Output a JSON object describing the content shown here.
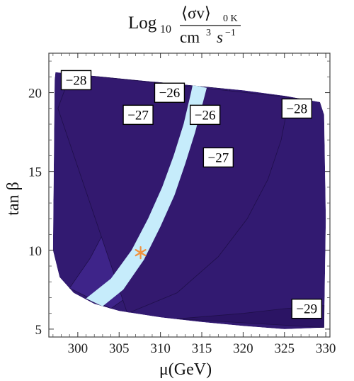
{
  "chart_data": {
    "type": "contour",
    "title": {
      "prefix": "Log",
      "base": "10",
      "numerator": "⟨σv⟩",
      "numerator_sub": "0 K",
      "denominator_a": "cm",
      "denominator_a_sup": "3",
      "denominator_b": "s",
      "denominator_b_sup": "−1"
    },
    "xlabel": "μ(GeV)",
    "ylabel": "tan β",
    "xlim": [
      296.5,
      330.5
    ],
    "ylim": [
      4.5,
      22.5
    ],
    "x_ticks": [
      300,
      305,
      310,
      315,
      320,
      325,
      330
    ],
    "x_tick_labels": [
      "300",
      "305",
      "310",
      "315",
      "320",
      "325",
      "330"
    ],
    "y_ticks": [
      5,
      10,
      15,
      20
    ],
    "y_tick_labels": [
      "5",
      "10",
      "15",
      "20"
    ],
    "region_boundary": [
      [
        297.3,
        21.3
      ],
      [
        299.0,
        21.2
      ],
      [
        303.0,
        21.0
      ],
      [
        310.0,
        20.65
      ],
      [
        320.0,
        20.15
      ],
      [
        325.0,
        19.8
      ],
      [
        329.3,
        19.4
      ],
      [
        329.8,
        18.6
      ],
      [
        330.0,
        12.0
      ],
      [
        329.8,
        5.1
      ],
      [
        325.0,
        5.0
      ],
      [
        320.0,
        5.2
      ],
      [
        315.0,
        5.45
      ],
      [
        310.0,
        5.75
      ],
      [
        305.0,
        6.15
      ],
      [
        302.0,
        6.6
      ],
      [
        299.5,
        7.3
      ],
      [
        297.8,
        8.3
      ],
      [
        297.0,
        10.0
      ],
      [
        297.2,
        20.8
      ]
    ],
    "bands": [
      {
        "level": "-26",
        "color": "#c6ecfb",
        "left_edge": [
          [
            301.0,
            6.95
          ],
          [
            304.0,
            8.2
          ],
          [
            306.5,
            10.0
          ],
          [
            308.5,
            12.0
          ],
          [
            310.2,
            14.0
          ],
          [
            311.6,
            16.0
          ],
          [
            312.8,
            18.0
          ],
          [
            313.7,
            20.0
          ],
          [
            313.9,
            20.5
          ]
        ],
        "right_edge": [
          [
            303.0,
            6.45
          ],
          [
            305.5,
            7.5
          ],
          [
            308.0,
            9.4
          ],
          [
            310.0,
            11.5
          ],
          [
            311.7,
            13.5
          ],
          [
            313.0,
            15.5
          ],
          [
            314.2,
            17.5
          ],
          [
            315.2,
            19.5
          ],
          [
            315.6,
            20.3
          ]
        ]
      },
      {
        "level": "-27",
        "color": "#3e2489",
        "left_edge": [
          [
            299.0,
            7.6
          ],
          [
            301.5,
            9.5
          ],
          [
            303.5,
            11.5
          ],
          [
            305.2,
            13.5
          ],
          [
            306.7,
            15.5
          ],
          [
            307.9,
            17.5
          ],
          [
            308.8,
            19.5
          ],
          [
            309.2,
            20.7
          ]
        ],
        "right_edge": [
          [
            304.0,
            6.3
          ],
          [
            307.5,
            7.6
          ],
          [
            310.5,
            9.6
          ],
          [
            313.0,
            11.8
          ],
          [
            315.0,
            14.0
          ],
          [
            316.5,
            16.0
          ],
          [
            317.6,
            18.0
          ],
          [
            318.4,
            20.2
          ]
        ]
      },
      {
        "level": "-28",
        "color": "#33196f",
        "left_edge": [
          [
            297.6,
            19.0
          ],
          [
            298.5,
            20.3
          ],
          [
            299.5,
            21.2
          ]
        ],
        "right_edge": [
          [
            306.0,
            6.0
          ],
          [
            312.0,
            7.3
          ],
          [
            317.0,
            9.6
          ],
          [
            320.5,
            12.0
          ],
          [
            323.0,
            14.5
          ],
          [
            324.6,
            17.0
          ],
          [
            325.6,
            19.7
          ]
        ]
      },
      {
        "level": "-29",
        "color": "#2b1464",
        "left_edge": [
          [
            312.0,
            5.65
          ],
          [
            320.0,
            6.0
          ],
          [
            325.0,
            6.3
          ],
          [
            329.8,
            6.5
          ]
        ],
        "right_edge": [
          [
            329.8,
            5.1
          ]
        ]
      }
    ],
    "base_color": "#321a71",
    "contour_line_color": "#1f0f4a",
    "contour_labels": [
      {
        "text": "−28",
        "x": 298.0,
        "y": 21.4
      },
      {
        "text": "−26",
        "x": 309.3,
        "y": 20.6
      },
      {
        "text": "−27",
        "x": 305.5,
        "y": 19.2
      },
      {
        "text": "−26",
        "x": 313.6,
        "y": 19.2
      },
      {
        "text": "−28",
        "x": 324.7,
        "y": 19.6
      },
      {
        "text": "−27",
        "x": 315.2,
        "y": 16.5
      },
      {
        "text": "−29",
        "x": 325.9,
        "y": 6.9
      }
    ],
    "marker": {
      "x": 307.6,
      "y": 9.85,
      "symbol": "*",
      "color": "#f0923e"
    },
    "grid": false,
    "legend": "none"
  }
}
